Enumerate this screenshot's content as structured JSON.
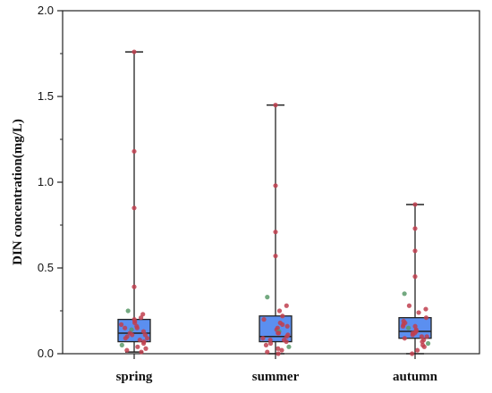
{
  "chart_data": {
    "type": "box",
    "ylabel": "DIN concentration(mg/L)",
    "xlabel": "",
    "ylim": [
      0,
      2.0
    ],
    "y_ticks": [
      "0.0",
      "0.5",
      "1.0",
      "1.5",
      "2.0"
    ],
    "categories": [
      "spring",
      "summer",
      "autumn"
    ],
    "grid": false,
    "colors": {
      "box_fill": "#5b8ff0",
      "box_stroke": "#222222",
      "point": "#c0404f",
      "point_alt": "#5a9a6a",
      "axis": "#222222"
    },
    "boxes": [
      {
        "name": "spring",
        "min": 0.01,
        "q1": 0.07,
        "median": 0.12,
        "q3": 0.2,
        "max": 1.76,
        "points": [
          1.76,
          1.18,
          0.85,
          0.39,
          0.25,
          0.23,
          0.21,
          0.2,
          0.19,
          0.18,
          0.17,
          0.16,
          0.15,
          0.14,
          0.13,
          0.12,
          0.11,
          0.1,
          0.09,
          0.08,
          0.07,
          0.06,
          0.05,
          0.04,
          0.03,
          0.02,
          0.01,
          0.15,
          0.11,
          0.09
        ]
      },
      {
        "name": "summer",
        "min": 0.0,
        "q1": 0.07,
        "median": 0.1,
        "q3": 0.22,
        "max": 1.45,
        "points": [
          1.45,
          0.98,
          0.71,
          0.57,
          0.33,
          0.28,
          0.25,
          0.22,
          0.2,
          0.18,
          0.16,
          0.15,
          0.14,
          0.13,
          0.12,
          0.11,
          0.1,
          0.09,
          0.08,
          0.07,
          0.06,
          0.05,
          0.04,
          0.03,
          0.02,
          0.0,
          0.17,
          0.12,
          0.08,
          0.01
        ]
      },
      {
        "name": "autumn",
        "min": 0.0,
        "q1": 0.09,
        "median": 0.13,
        "q3": 0.21,
        "max": 0.87,
        "points": [
          0.87,
          0.73,
          0.6,
          0.45,
          0.35,
          0.28,
          0.26,
          0.24,
          0.21,
          0.19,
          0.18,
          0.17,
          0.16,
          0.15,
          0.14,
          0.13,
          0.12,
          0.11,
          0.1,
          0.09,
          0.08,
          0.07,
          0.06,
          0.05,
          0.04,
          0.02,
          0.0,
          0.16,
          0.12,
          0.1
        ]
      }
    ]
  }
}
